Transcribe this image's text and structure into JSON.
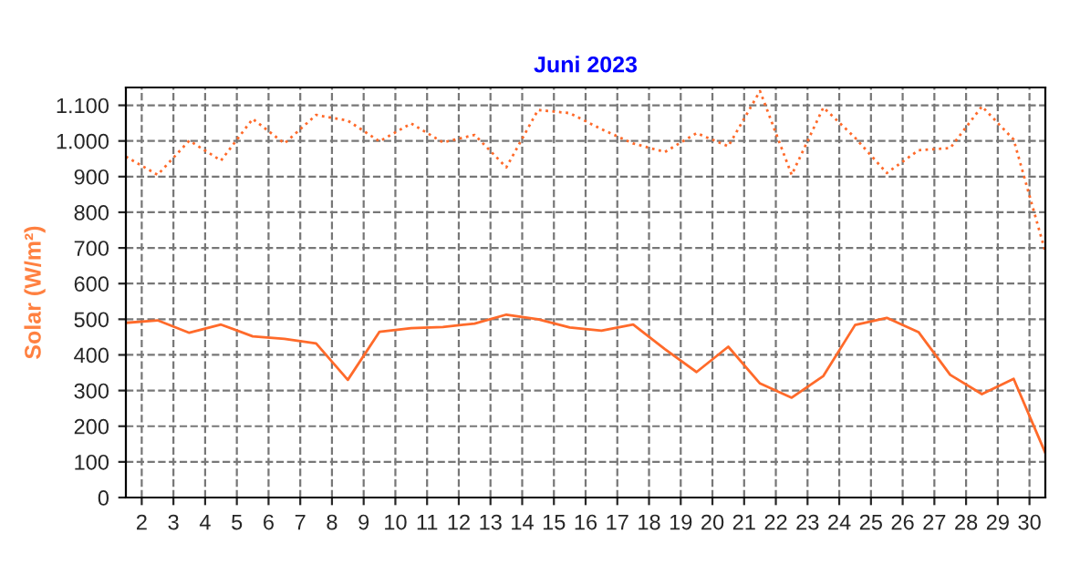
{
  "chart_data": {
    "type": "line",
    "title": "Juni 2023",
    "ylabel": "Solar (W/m²)",
    "x": [
      1.5,
      2.5,
      3.5,
      4.5,
      5.5,
      6.5,
      7.5,
      8.5,
      9.5,
      10.5,
      11.5,
      12.5,
      13.5,
      14.5,
      15.5,
      16.5,
      17.5,
      18.5,
      19.5,
      20.5,
      21.5,
      22.5,
      23.5,
      24.5,
      25.5,
      26.5,
      27.5,
      28.5,
      29.5,
      30.5
    ],
    "series": [
      {
        "color": "#ff6a2a",
        "line_style": "dotted",
        "values": [
          956,
          905,
          1001,
          945,
          1062,
          993,
          1073,
          1057,
          999,
          1049,
          996,
          1017,
          926,
          1087,
          1078,
          1033,
          993,
          969,
          1022,
          985,
          1140,
          905,
          1094,
          1009,
          910,
          974,
          980,
          1097,
          1004,
          689
        ]
      },
      {
        "color": "#ff6a2a",
        "line_style": "solid",
        "values": [
          490,
          497,
          462,
          485,
          452,
          445,
          432,
          330,
          465,
          475,
          478,
          488,
          513,
          500,
          477,
          468,
          485,
          416,
          352,
          423,
          320,
          280,
          341,
          484,
          504,
          464,
          344,
          290,
          333,
          125
        ]
      }
    ],
    "xlim": [
      1.5,
      30.5
    ],
    "xticks": [
      2,
      3,
      4,
      5,
      6,
      7,
      8,
      9,
      10,
      11,
      12,
      13,
      14,
      15,
      16,
      17,
      18,
      19,
      20,
      21,
      22,
      23,
      24,
      25,
      26,
      27,
      28,
      29,
      30
    ],
    "ylim": [
      0,
      1150
    ],
    "yticks": [
      0,
      100,
      200,
      300,
      400,
      500,
      600,
      700,
      800,
      900,
      {
        "value": 1000,
        "label": "1.000"
      },
      {
        "value": 1100,
        "label": "1.100"
      }
    ],
    "grid": true,
    "legend": false,
    "marker": "none"
  }
}
